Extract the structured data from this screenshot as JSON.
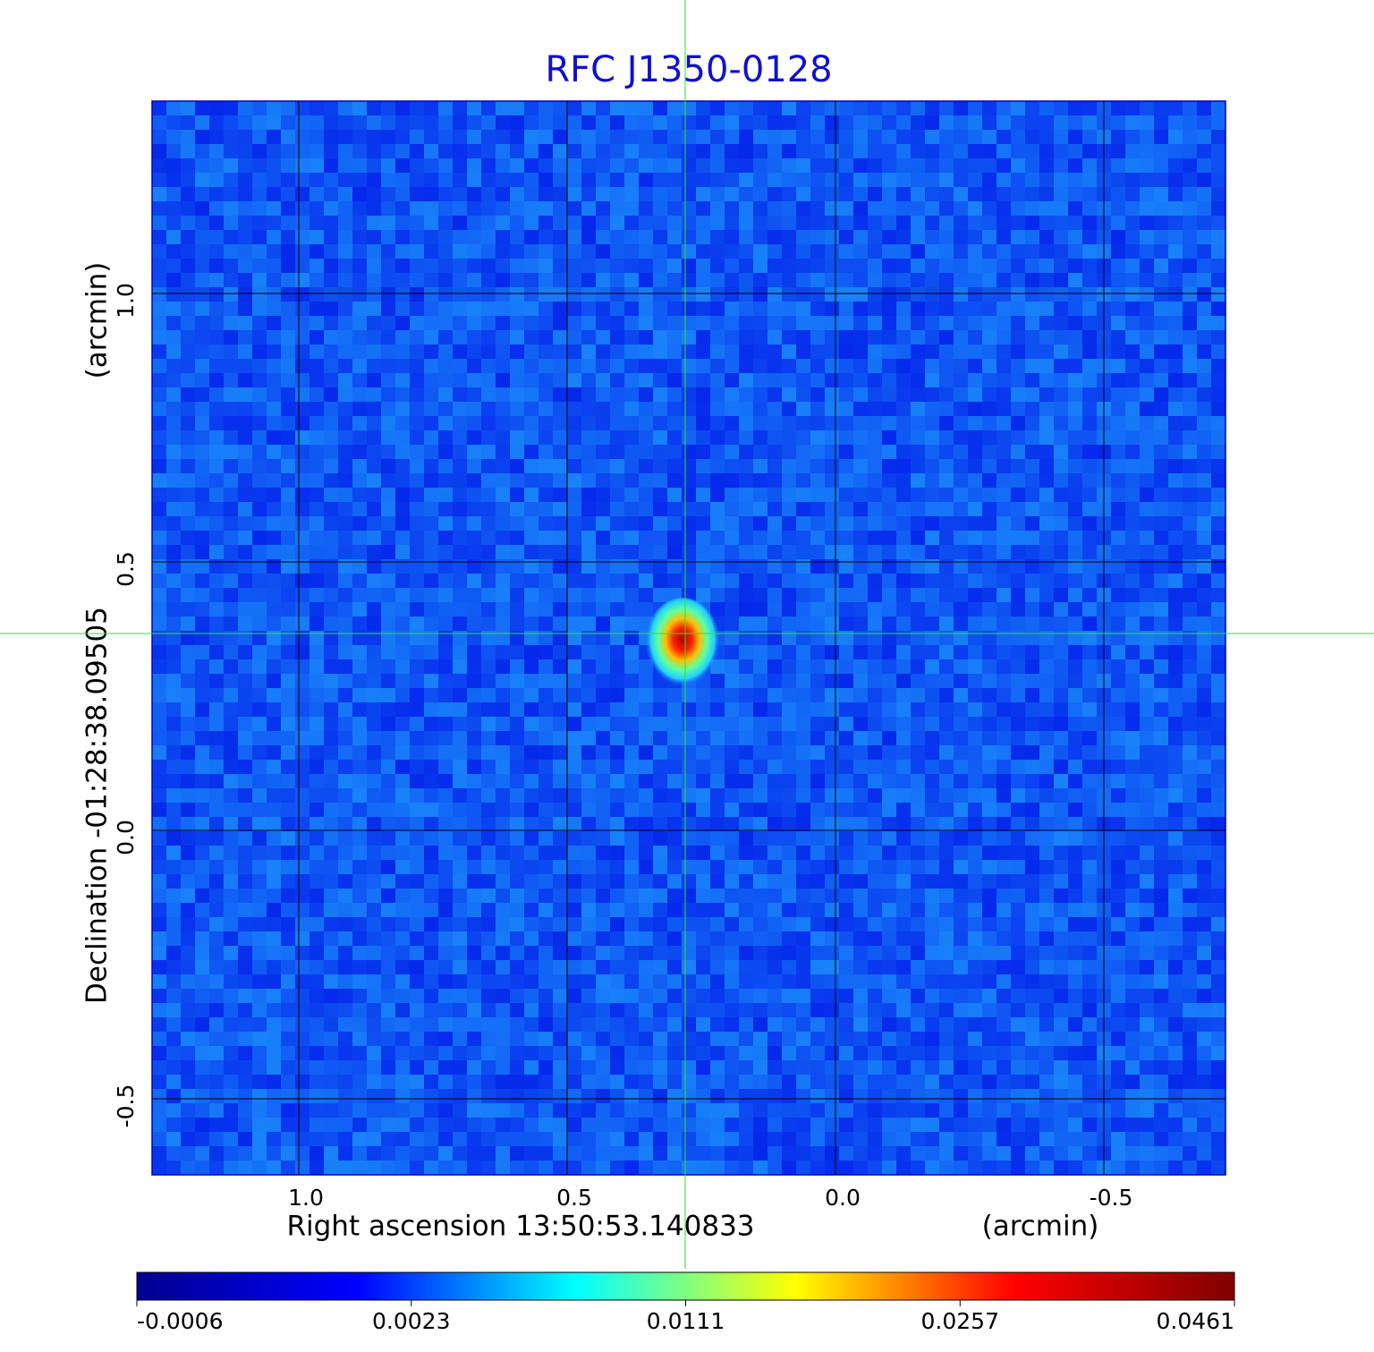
{
  "chart_data": {
    "type": "image",
    "title": "RFC J1350-0128",
    "x_label": "Right ascension  13:50:53.140833",
    "x_unit": "(arcmin)",
    "y_label": "Declination  -01:28:38.09505",
    "y_unit": "(arcmin)",
    "xlim": [
      1.2733,
      -0.7267
    ],
    "ylim": [
      -0.6417,
      1.3583
    ],
    "xticks": [
      {
        "value": 1,
        "label": "1.0"
      },
      0.5,
      {
        "value": 0,
        "label": "0.0"
      },
      -0.5
    ],
    "yticks": [
      {
        "value": -0.5,
        "label": "-0.5"
      },
      {
        "value": 0,
        "label": "0.0"
      },
      0.5,
      {
        "value": 1,
        "label": "1.0"
      }
    ],
    "grid": true,
    "crosshair": {
      "x": 0.28,
      "y": 0.3667,
      "color": "#33dd33"
    },
    "colorbar": {
      "ticks": [
        -0.0006,
        0.0023,
        0.0111,
        0.0257,
        0.0461
      ],
      "colors": [
        "#00008f",
        "#0000ff",
        "#00ffff",
        "#ffff00",
        "#ff0000",
        "#800000"
      ]
    }
  }
}
